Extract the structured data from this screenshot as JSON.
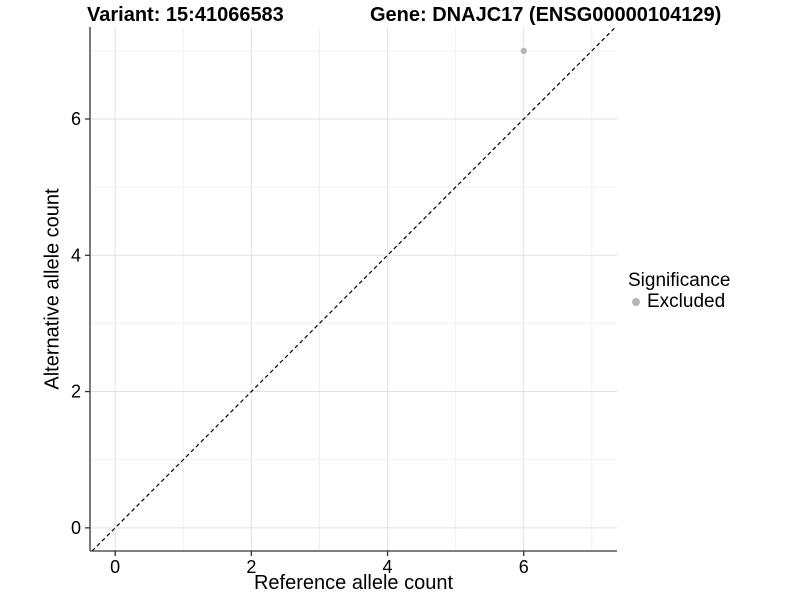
{
  "chart_data": {
    "type": "scatter",
    "titles": {
      "left": "Variant: 15:41066583",
      "right": "Gene: DNAJC17 (ENSG00000104129)"
    },
    "xlabel": "Reference allele count",
    "ylabel": "Alternative allele count",
    "xlim": [
      -0.37,
      7.37
    ],
    "ylim": [
      -0.34,
      7.35
    ],
    "x_ticks": [
      0,
      2,
      4,
      6
    ],
    "y_ticks": [
      0,
      2,
      4,
      6
    ],
    "x_minor_ticks": [
      1,
      3,
      5,
      7
    ],
    "y_minor_ticks": [
      1,
      3,
      5,
      7
    ],
    "grid": true,
    "points": [
      {
        "x": 6,
        "y": 7,
        "series": "Excluded"
      }
    ],
    "reference_line": {
      "slope": 1,
      "intercept": 0,
      "style": "dashed",
      "color": "#000000"
    },
    "legend": {
      "position": "right",
      "title": "Significance",
      "entries": [
        {
          "label": "Excluded",
          "color": "#b5b5b5"
        }
      ]
    },
    "colors": {
      "point": "#b5b5b5",
      "grid_major": "#e2e2e2",
      "grid_minor": "#f0f0f0",
      "axis": "#333333"
    }
  }
}
